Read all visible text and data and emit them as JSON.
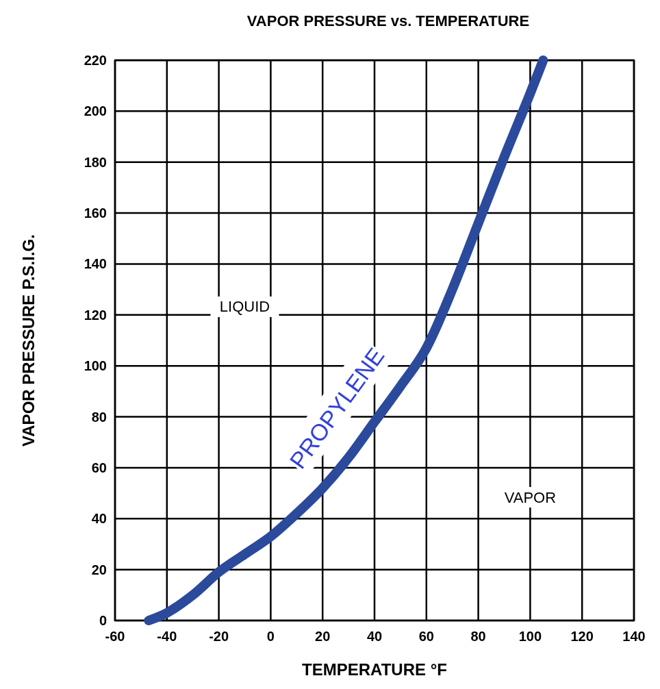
{
  "chart_data": {
    "type": "line",
    "title": "VAPOR PRESSURE vs. TEMPERATURE",
    "xlabel": "TEMPERATURE °F",
    "ylabel": "VAPOR PRESSURE P.S.I.G.",
    "x": [
      -47,
      -40,
      -30,
      -20,
      -10,
      0,
      10,
      20,
      30,
      40,
      50,
      60,
      70,
      80,
      90,
      100,
      105
    ],
    "series": [
      {
        "name": "PROPYLENE",
        "color": "#2b4a9c",
        "values": [
          0,
          3,
          10,
          19,
          26,
          33,
          42,
          52,
          64,
          78,
          92,
          107,
          130,
          156,
          182,
          207,
          220
        ]
      }
    ],
    "xlim": [
      -60,
      140
    ],
    "xticks": [
      -60,
      -40,
      -20,
      0,
      20,
      40,
      60,
      80,
      100,
      120,
      140
    ],
    "ylim": [
      0,
      220
    ],
    "yticks": [
      0,
      20,
      40,
      60,
      80,
      100,
      120,
      140,
      160,
      180,
      200,
      220
    ],
    "grid": true,
    "line_style": "solid",
    "annotations": [
      "LIQUID",
      "VAPOR"
    ]
  }
}
